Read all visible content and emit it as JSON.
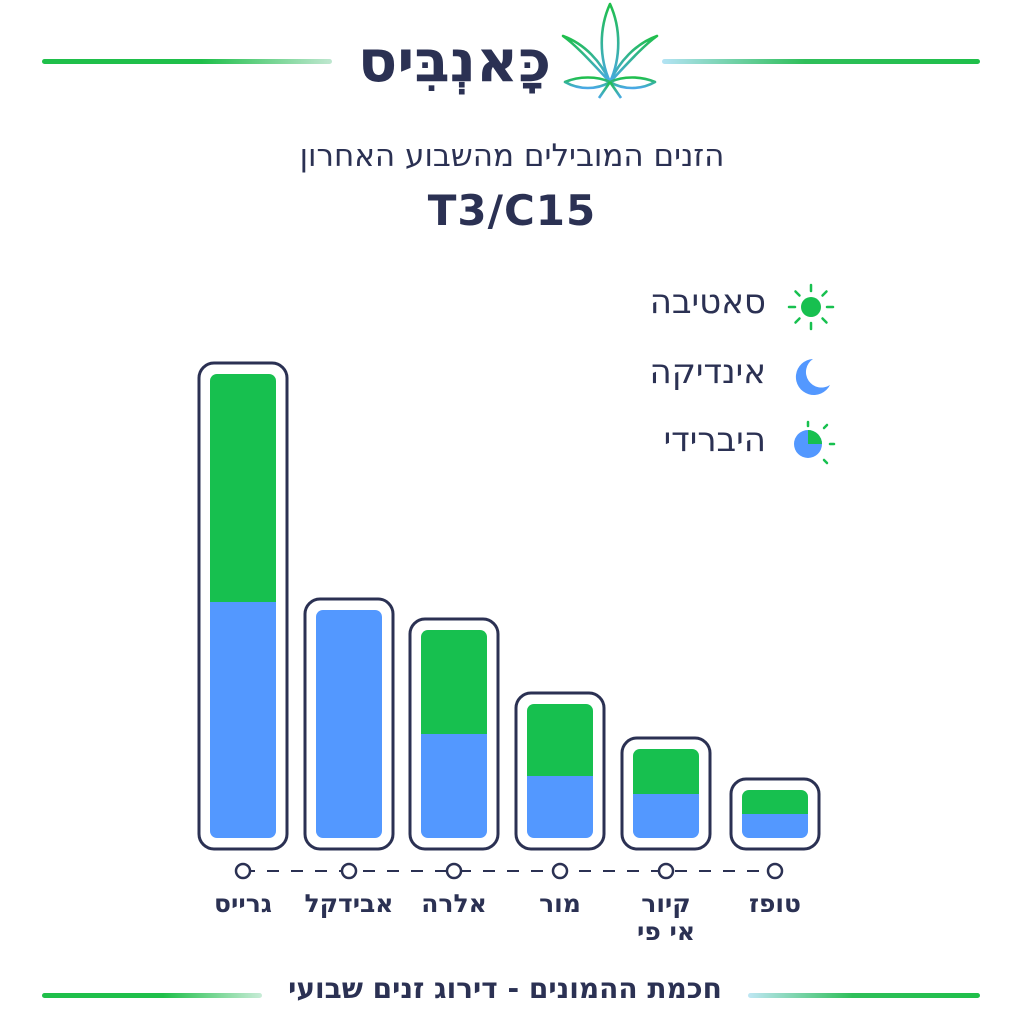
{
  "brand": {
    "logo_text": "כָּאנְבִּיס",
    "logo_icon": "cannabis-leaf-icon"
  },
  "subtitle": "הזנים המובילים מהשבוע האחרון",
  "title": "T3/C15",
  "legend": [
    {
      "label": "סאטיבה",
      "icon": "sun-icon",
      "color": "#17c04f"
    },
    {
      "label": "אינדיקה",
      "icon": "moon-icon",
      "color": "#5398ff"
    },
    {
      "label": "היברידי",
      "icon": "half-sun-moon-icon",
      "color": "#17c04f"
    }
  ],
  "chart_data": {
    "type": "bar",
    "stacked": true,
    "categories": [
      "גרייס",
      "אבידקל",
      "אלרה",
      "מור",
      "קיור אי פי",
      "טופז"
    ],
    "category_lines": [
      [
        "גרייס"
      ],
      [
        "אבידקל"
      ],
      [
        "אלרה"
      ],
      [
        "מור"
      ],
      [
        "קיור",
        "אי פי"
      ],
      [
        "טופז"
      ]
    ],
    "series": [
      {
        "color": "#5398ff",
        "values": [
          236,
          228,
          104,
          62,
          44,
          24
        ]
      },
      {
        "color": "#17c04f",
        "values": [
          228,
          0,
          104,
          72,
          45,
          24
        ]
      }
    ],
    "ylim": [
      0,
      464
    ],
    "grid": false
  },
  "footer": "חכמת ההמונים - דירוג זנים שבועי"
}
